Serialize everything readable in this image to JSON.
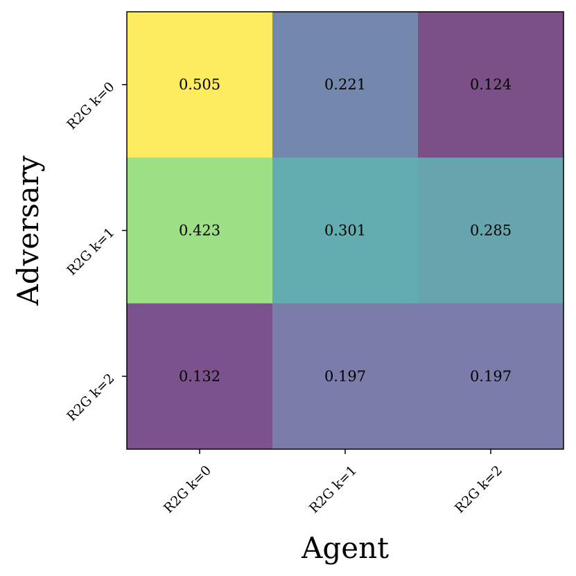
{
  "chart_data": {
    "type": "heatmap",
    "title": "",
    "xlabel": "Agent",
    "ylabel": "Adversary",
    "x_categories": [
      "R2G k=0",
      "R2G k=1",
      "R2G k=2"
    ],
    "y_categories": [
      "R2G k=0",
      "R2G k=1",
      "R2G k=2"
    ],
    "values": [
      [
        0.505,
        0.221,
        0.124
      ],
      [
        0.423,
        0.301,
        0.285
      ],
      [
        0.132,
        0.197,
        0.197
      ]
    ],
    "value_labels": [
      [
        "0.505",
        "0.221",
        "0.124"
      ],
      [
        "0.423",
        "0.301",
        "0.285"
      ],
      [
        "0.132",
        "0.197",
        "0.197"
      ]
    ],
    "colormap": "viridis",
    "cell_colors": [
      [
        "#fdec60",
        "#7488ae",
        "#7b4f87"
      ],
      [
        "#9ddf84",
        "#63adb0",
        "#67a5ae"
      ],
      [
        "#7c528c",
        "#7a7daa",
        "#7a7daa"
      ]
    ],
    "grid": false,
    "legend": "none"
  }
}
